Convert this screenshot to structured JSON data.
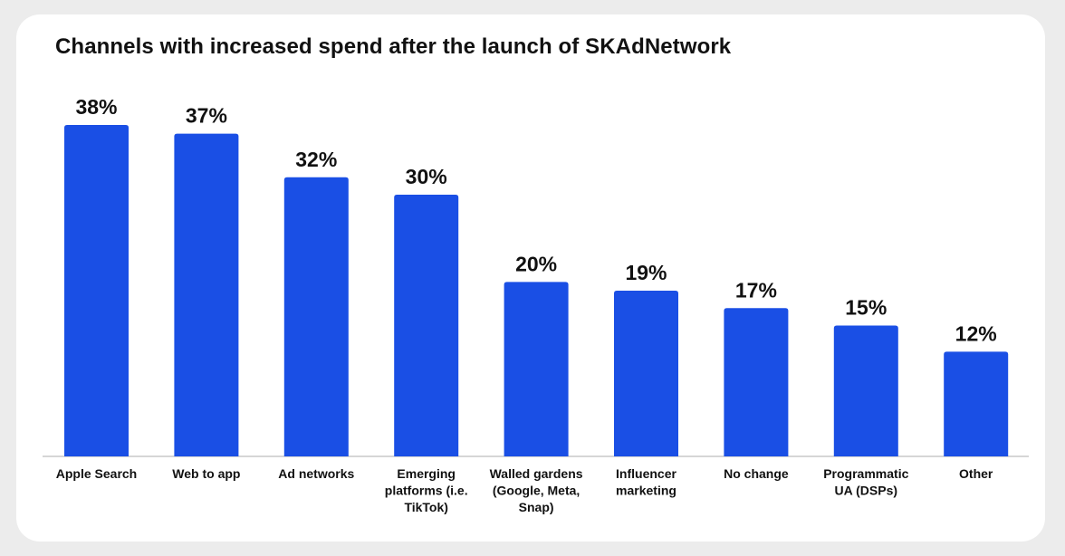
{
  "chart_data": {
    "type": "bar",
    "title": "Channels with increased spend after the launch of SKAdNetwork",
    "categories": [
      "Apple Search",
      "Web to app",
      "Ad networks",
      "Emerging platforms (i.e. TikTok)",
      "Walled gardens (Google, Meta, Snap)",
      "Influencer marketing",
      "No change",
      "Programmatic UA (DSPs)",
      "Other"
    ],
    "category_lines": [
      [
        "Apple Search"
      ],
      [
        "Web to app"
      ],
      [
        "Ad networks"
      ],
      [
        "Emerging",
        "platforms (i.e.",
        "TikTok)"
      ],
      [
        "Walled gardens",
        "(Google, Meta,",
        "Snap)"
      ],
      [
        "Influencer",
        "marketing"
      ],
      [
        "No change"
      ],
      [
        "Programmatic",
        "UA (DSPs)"
      ],
      [
        "Other"
      ]
    ],
    "values": [
      38,
      37,
      32,
      30,
      20,
      19,
      17,
      15,
      12
    ],
    "value_labels": [
      "38%",
      "37%",
      "32%",
      "30%",
      "20%",
      "19%",
      "17%",
      "15%",
      "12%"
    ],
    "unit": "%",
    "ylim": [
      0,
      38
    ],
    "xlabel": "",
    "ylabel": "",
    "grid": false,
    "legend": "none",
    "bar_color": "#1a4fe5",
    "axis_color": "#c8c8c8"
  }
}
